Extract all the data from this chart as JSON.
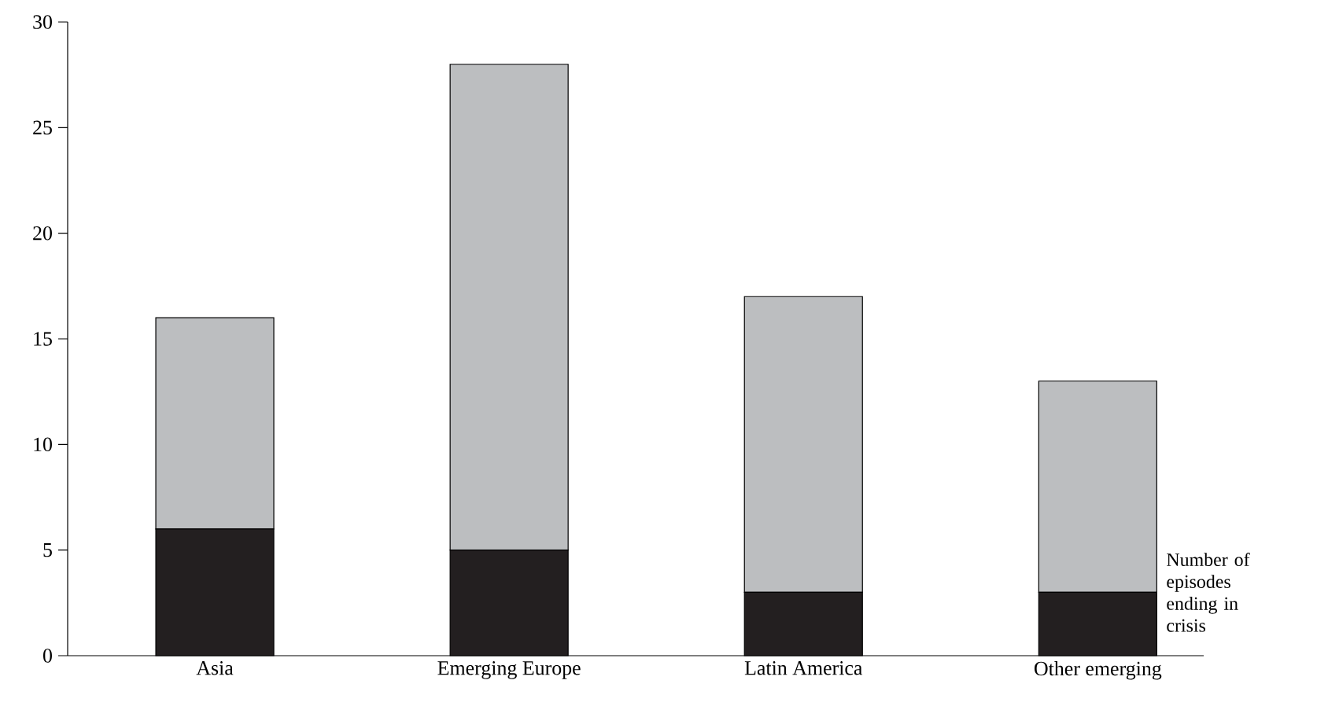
{
  "chart_data": {
    "type": "bar",
    "stacked": true,
    "categories": [
      "Asia",
      "Emerging Europe",
      "Latin America",
      "Other emerging"
    ],
    "series": [
      {
        "name": "Number of episodes ending in crisis",
        "color": "#231f20",
        "values": [
          6,
          5,
          3,
          3
        ]
      },
      {
        "color": "#bcbec0",
        "values": [
          10,
          23,
          14,
          10
        ]
      }
    ],
    "ylim": [
      0,
      30
    ],
    "yticks": [
      0,
      5,
      10,
      15,
      20,
      25,
      30
    ],
    "grid": false,
    "legend": false
  }
}
